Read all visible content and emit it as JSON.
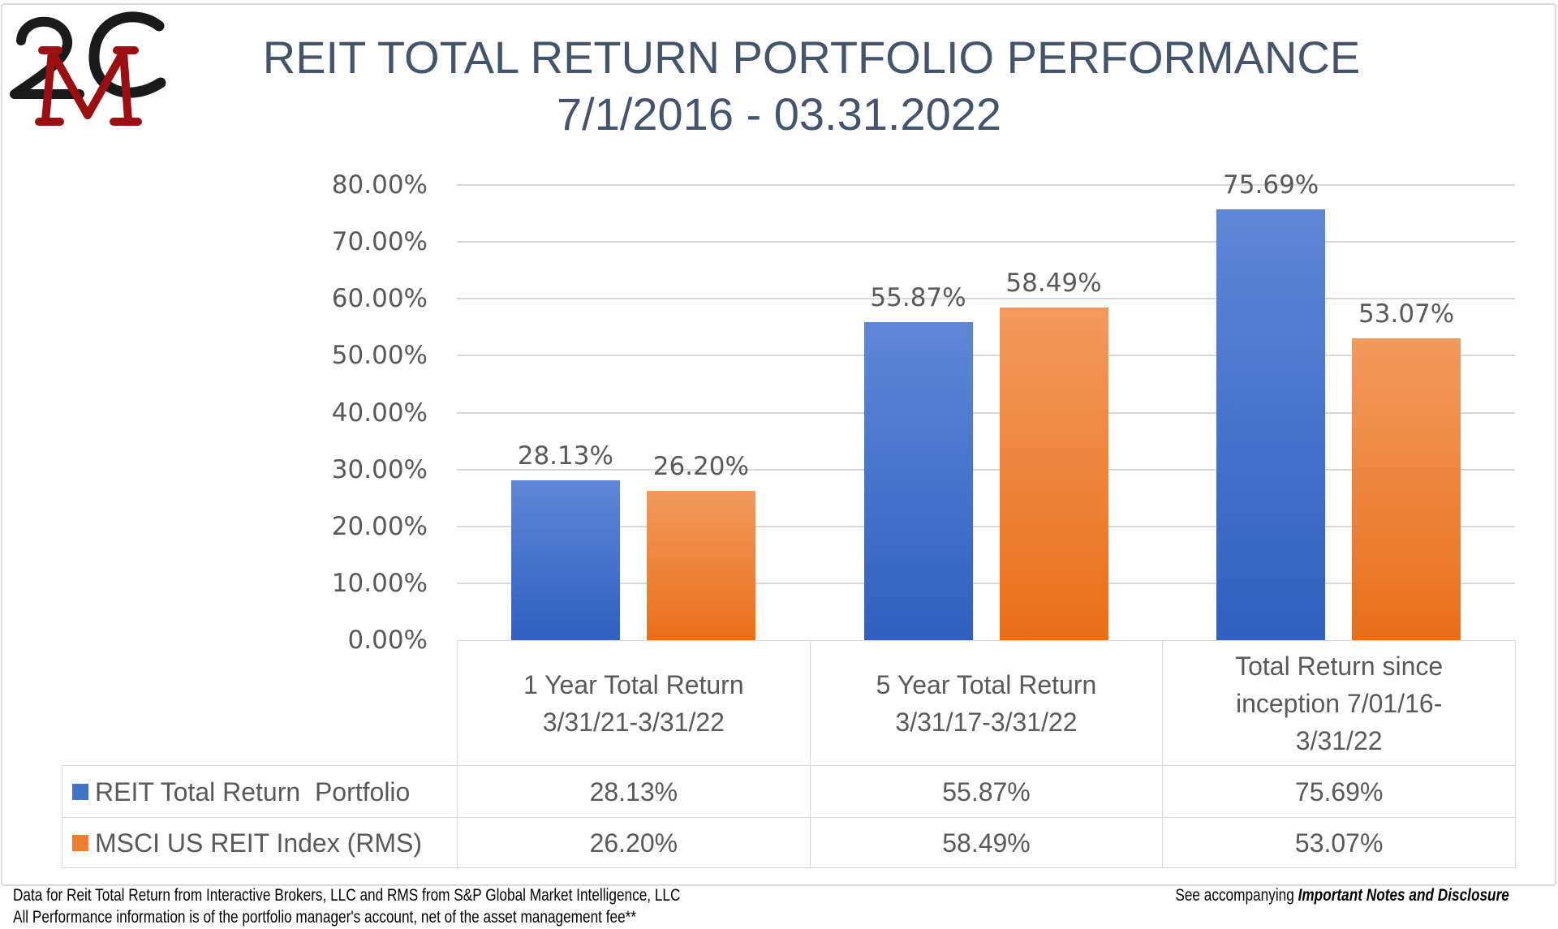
{
  "logo": {
    "text": "2MC",
    "colors": {
      "dark": "#1a1a1a",
      "red": "#9b0f12"
    }
  },
  "title": {
    "line1": "REIT TOTAL RETURN PORTFOLIO PERFORMANCE",
    "line2": "7/1/2016 - 03.31.2022"
  },
  "chart_data": {
    "type": "bar",
    "categories": [
      "1 Year Total Return 3/31/21-3/31/22",
      "5 Year Total Return 3/31/17-3/31/22",
      "Total Return since inception 7/01/16-3/31/22"
    ],
    "series": [
      {
        "name": "REIT Total Return  Portfolio",
        "values": [
          28.13,
          55.87,
          75.69
        ],
        "labels": [
          "28.13%",
          "55.87%",
          "75.69%"
        ],
        "color": "#4472c4"
      },
      {
        "name": "MSCI US REIT Index (RMS)",
        "values": [
          26.2,
          58.49,
          53.07
        ],
        "labels": [
          "26.20%",
          "58.49%",
          "53.07%"
        ],
        "color": "#ed7d31"
      }
    ],
    "yticks": [
      "0.00%",
      "10.00%",
      "20.00%",
      "30.00%",
      "40.00%",
      "50.00%",
      "60.00%",
      "70.00%",
      "80.00%"
    ],
    "ylim": [
      0,
      80
    ],
    "grid": true,
    "legend": "data-table"
  },
  "footer": {
    "line1": "Data for Reit Total Return from Interactive Brokers, LLC and RMS from S&P Global Market Intelligence, LLC",
    "line2": "All Performance information is of the portfolio manager's account, net of the asset management fee**",
    "right_prefix": "See accompanying ",
    "right_emph": "Important Notes and Disclosure"
  }
}
